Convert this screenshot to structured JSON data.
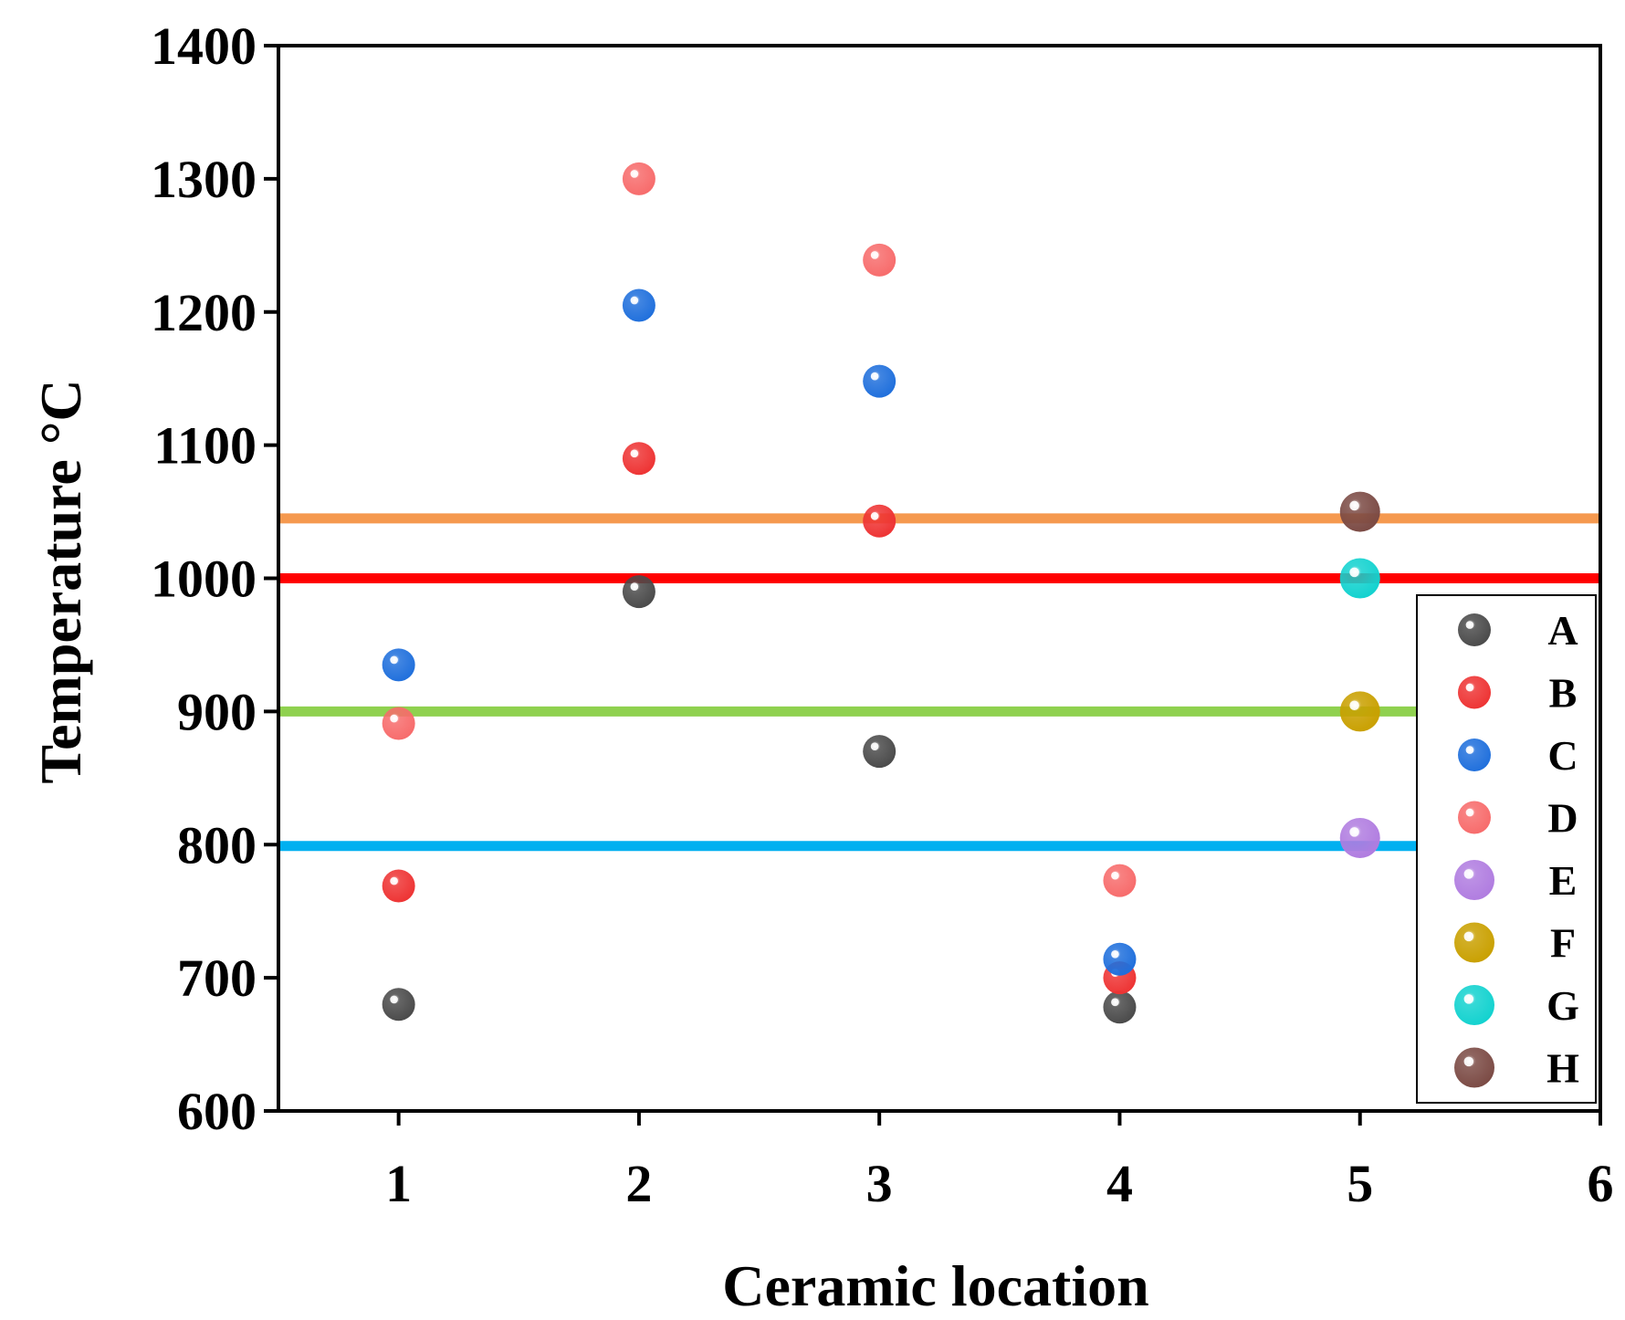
{
  "chart_data": {
    "type": "scatter",
    "title": "",
    "xlabel": "Ceramic location",
    "ylabel": "Temperature °C",
    "xlim": [
      0.5,
      6
    ],
    "ylim": [
      600,
      1400
    ],
    "xticks": [
      1,
      2,
      3,
      4,
      5,
      6
    ],
    "yticks": [
      600,
      700,
      800,
      900,
      1000,
      1100,
      1200,
      1300,
      1400
    ],
    "xtick_labels": [
      "1",
      "2",
      "3",
      "4",
      "5",
      "6"
    ],
    "ytick_labels": [
      "600",
      "700",
      "800",
      "900",
      "1000",
      "1100",
      "1200",
      "1300",
      "1400"
    ],
    "grid": false,
    "legend_position": "right-middle",
    "series": [
      {
        "name": "A",
        "color": "#4a4a4a",
        "marker": "small",
        "points": [
          [
            1,
            680
          ],
          [
            2,
            990
          ],
          [
            3,
            870
          ],
          [
            4,
            678
          ]
        ]
      },
      {
        "name": "B",
        "color": "#ee3333",
        "marker": "small",
        "points": [
          [
            1,
            769
          ],
          [
            2,
            1090
          ],
          [
            3,
            1043
          ],
          [
            4,
            700
          ]
        ]
      },
      {
        "name": "C",
        "color": "#1f6fdc",
        "marker": "small",
        "points": [
          [
            1,
            935
          ],
          [
            2,
            1205
          ],
          [
            3,
            1148
          ],
          [
            4,
            714
          ]
        ]
      },
      {
        "name": "D",
        "color": "#f76b6b",
        "marker": "small",
        "points": [
          [
            1,
            891
          ],
          [
            2,
            1300
          ],
          [
            3,
            1239
          ],
          [
            4,
            773
          ]
        ]
      },
      {
        "name": "E",
        "color": "#b07ce0",
        "marker": "large",
        "points": [
          [
            5,
            805
          ]
        ]
      },
      {
        "name": "F",
        "color": "#c9a000",
        "marker": "large",
        "points": [
          [
            5,
            900
          ]
        ]
      },
      {
        "name": "G",
        "color": "#12d2cf",
        "marker": "large",
        "points": [
          [
            5,
            1000
          ]
        ]
      },
      {
        "name": "H",
        "color": "#7b4a44",
        "marker": "large",
        "points": [
          [
            5,
            1050
          ]
        ]
      }
    ],
    "reference_lines": [
      {
        "y": 1045,
        "x_end": 6,
        "color": "#f5994f"
      },
      {
        "y": 1000,
        "x_end": 6,
        "color": "#ff0000"
      },
      {
        "y": 900,
        "x_end": 5.25,
        "color": "#8fd14f"
      },
      {
        "y": 799,
        "x_end": 5.25,
        "color": "#00b0f0"
      }
    ]
  }
}
